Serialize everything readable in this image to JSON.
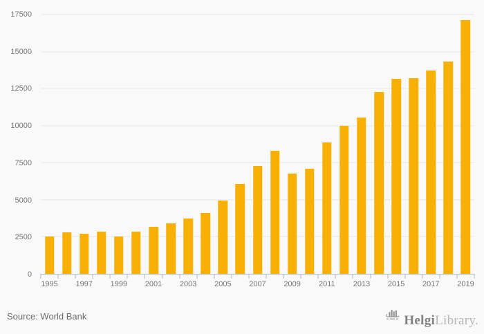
{
  "page": {
    "background": "#f9f9f9"
  },
  "chart_data": {
    "type": "bar",
    "categories": [
      "1995",
      "1996",
      "1997",
      "1998",
      "1999",
      "2000",
      "2001",
      "2002",
      "2003",
      "2004",
      "2005",
      "2006",
      "2007",
      "2008",
      "2009",
      "2010",
      "2011",
      "2012",
      "2013",
      "2014",
      "2015",
      "2016",
      "2017",
      "2018",
      "2019"
    ],
    "values": [
      2500,
      2800,
      2700,
      2850,
      2530,
      2840,
      3170,
      3390,
      3750,
      4100,
      4950,
      6080,
      7260,
      8300,
      6790,
      7090,
      8880,
      9990,
      10570,
      12290,
      13150,
      13220,
      13720,
      14330,
      17130
    ],
    "ylim": [
      0,
      17500
    ],
    "yticks": [
      0,
      2500,
      5000,
      7500,
      10000,
      12500,
      15000,
      17500
    ],
    "xtick_label_step": 2,
    "grid": true,
    "legend": "none",
    "bar_color": "#F9B005",
    "gridline_color": "#e6e6e6",
    "axis_color": "#b0bccf",
    "tick_label_color": "#757575"
  },
  "footer": {
    "source": "Source: World Bank",
    "logo": {
      "icon": "helgi-ship-icon",
      "primary": "Helgi",
      "secondary": "Library."
    }
  }
}
